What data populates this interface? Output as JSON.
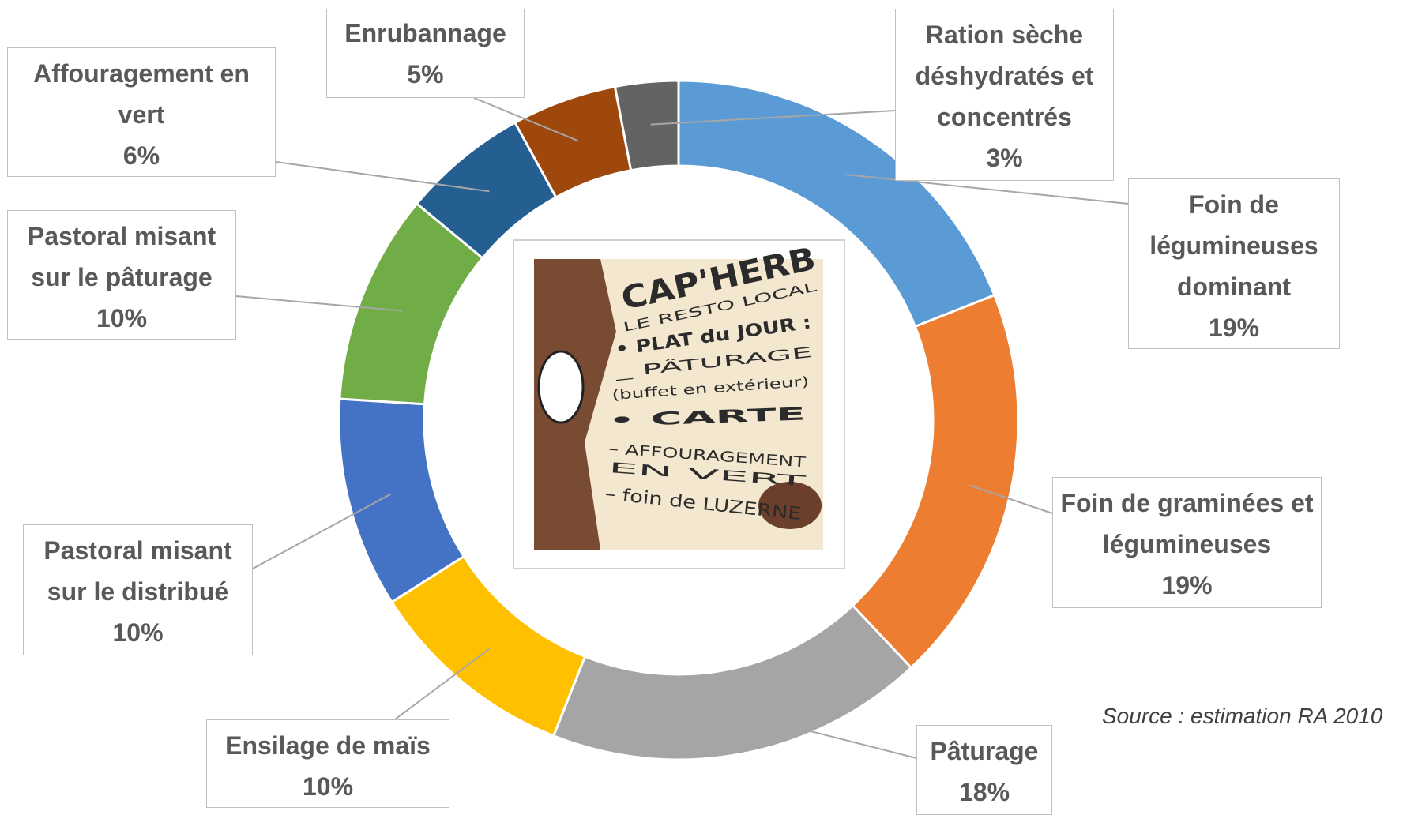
{
  "chart_data": {
    "type": "donut",
    "categories": [
      "Foin de légumineuses dominant",
      "Foin de graminées et légumineuses",
      "Pâturage",
      "Ensilage de maïs",
      "Pastoral misant sur le distribué",
      "Pastoral misant sur le pâturage",
      "Affouragement en vert",
      "Enrubannage",
      "Ration sèche déshydratés et concentrés"
    ],
    "values": [
      19,
      19,
      18,
      10,
      10,
      10,
      6,
      5,
      3
    ],
    "value_labels": [
      "19%",
      "19%",
      "18%",
      "10%",
      "10%",
      "10%",
      "6%",
      "5%",
      "3%"
    ],
    "colors": [
      "#5b9bd5",
      "#ed7d31",
      "#a5a5a5",
      "#ffc000",
      "#4472c4",
      "#70ad47",
      "#255e91",
      "#9e480e",
      "#636363"
    ],
    "source": "Source : estimation RA 2010"
  },
  "illustration": {
    "texts": [
      "CAP'HERB",
      "LE RESTO LOCAL",
      "• PLAT du JOUR :",
      "_ PÂTURAGE",
      "(buffet en extérieur)",
      "• CARTE",
      "– AFFOURAGEMENT",
      "EN VERT",
      "– foin de LUZERNE"
    ]
  }
}
